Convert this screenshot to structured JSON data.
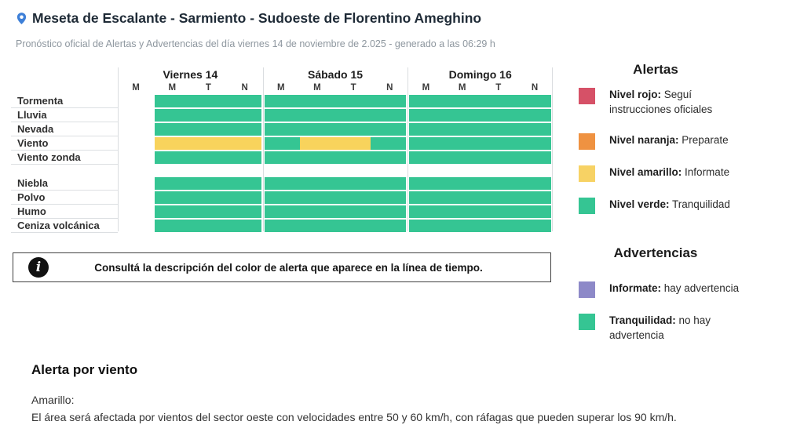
{
  "header": {
    "title": "Meseta de Escalante - Sarmiento - Sudoeste de Florentino Ameghino",
    "subtitle": "Pronóstico oficial de Alertas y Advertencias del día viernes 14 de noviembre de 2.025 - generado a las 06:29 h",
    "pin_color": "#3e80d8"
  },
  "timeline": {
    "days": [
      {
        "name": "Viernes 14",
        "periods": [
          "M",
          "M",
          "T",
          "N"
        ]
      },
      {
        "name": "Sábado 15",
        "periods": [
          "M",
          "M",
          "T",
          "N"
        ]
      },
      {
        "name": "Domingo 16",
        "periods": [
          "M",
          "M",
          "T",
          "N"
        ]
      }
    ],
    "colors": {
      "green": "#35c593",
      "yellow": "#f8d35c",
      "none": "transparent"
    },
    "rows": [
      {
        "label": "Tormenta",
        "days": [
          [
            {
              "c": "none",
              "s": 1
            },
            {
              "c": "green",
              "s": 3
            }
          ],
          [
            {
              "c": "green",
              "s": 4
            }
          ],
          [
            {
              "c": "green",
              "s": 4
            }
          ]
        ]
      },
      {
        "label": "Lluvia",
        "days": [
          [
            {
              "c": "none",
              "s": 1
            },
            {
              "c": "green",
              "s": 3
            }
          ],
          [
            {
              "c": "green",
              "s": 4
            }
          ],
          [
            {
              "c": "green",
              "s": 4
            }
          ]
        ]
      },
      {
        "label": "Nevada",
        "days": [
          [
            {
              "c": "none",
              "s": 1
            },
            {
              "c": "green",
              "s": 3
            }
          ],
          [
            {
              "c": "green",
              "s": 4
            }
          ],
          [
            {
              "c": "green",
              "s": 4
            }
          ]
        ]
      },
      {
        "label": "Viento",
        "days": [
          [
            {
              "c": "none",
              "s": 1
            },
            {
              "c": "yellow",
              "s": 3
            }
          ],
          [
            {
              "c": "green",
              "s": 1
            },
            {
              "c": "yellow",
              "s": 2
            },
            {
              "c": "green",
              "s": 1
            }
          ],
          [
            {
              "c": "green",
              "s": 4
            }
          ]
        ]
      },
      {
        "label": "Viento zonda",
        "days": [
          [
            {
              "c": "none",
              "s": 1
            },
            {
              "c": "green",
              "s": 3
            }
          ],
          [
            {
              "c": "green",
              "s": 4
            }
          ],
          [
            {
              "c": "green",
              "s": 4
            }
          ]
        ]
      },
      {
        "label": "Niebla",
        "gap_before": true,
        "days": [
          [
            {
              "c": "none",
              "s": 1
            },
            {
              "c": "green",
              "s": 3
            }
          ],
          [
            {
              "c": "green",
              "s": 4
            }
          ],
          [
            {
              "c": "green",
              "s": 4
            }
          ]
        ]
      },
      {
        "label": "Polvo",
        "days": [
          [
            {
              "c": "none",
              "s": 1
            },
            {
              "c": "green",
              "s": 3
            }
          ],
          [
            {
              "c": "green",
              "s": 4
            }
          ],
          [
            {
              "c": "green",
              "s": 4
            }
          ]
        ]
      },
      {
        "label": "Humo",
        "days": [
          [
            {
              "c": "none",
              "s": 1
            },
            {
              "c": "green",
              "s": 3
            }
          ],
          [
            {
              "c": "green",
              "s": 4
            }
          ],
          [
            {
              "c": "green",
              "s": 4
            }
          ]
        ]
      },
      {
        "label": "Ceniza volcánica",
        "days": [
          [
            {
              "c": "none",
              "s": 1
            },
            {
              "c": "green",
              "s": 3
            }
          ],
          [
            {
              "c": "green",
              "s": 4
            }
          ],
          [
            {
              "c": "green",
              "s": 4
            }
          ]
        ]
      }
    ]
  },
  "legend": {
    "alertas": {
      "title": "Alertas",
      "items": [
        {
          "color": "#d65167",
          "label": "Nivel rojo:",
          "text": "Seguí instrucciones oficiales"
        },
        {
          "color": "#ef9241",
          "label": "Nivel naranja:",
          "text": "Preparate"
        },
        {
          "color": "#f7d264",
          "label": "Nivel amarillo:",
          "text": "Informate"
        },
        {
          "color": "#35c593",
          "label": "Nivel verde:",
          "text": "Tranquilidad"
        }
      ]
    },
    "advertencias": {
      "title": "Advertencias",
      "items": [
        {
          "color": "#8d89c8",
          "label": "Informate:",
          "text": "hay advertencia"
        },
        {
          "color": "#35c593",
          "label": "Tranquilidad:",
          "text": "no hay advertencia"
        }
      ]
    }
  },
  "info_box": {
    "icon": "info-icon",
    "text": "Consultá la descripción del color de alerta que aparece en la línea de tiempo."
  },
  "alert_detail": {
    "title": "Alerta por viento",
    "level": "Amarillo:",
    "description": "El área será afectada por vientos del sector oeste con velocidades entre 50 y 60 km/h, con ráfagas que pueden superar los 90 km/h."
  }
}
